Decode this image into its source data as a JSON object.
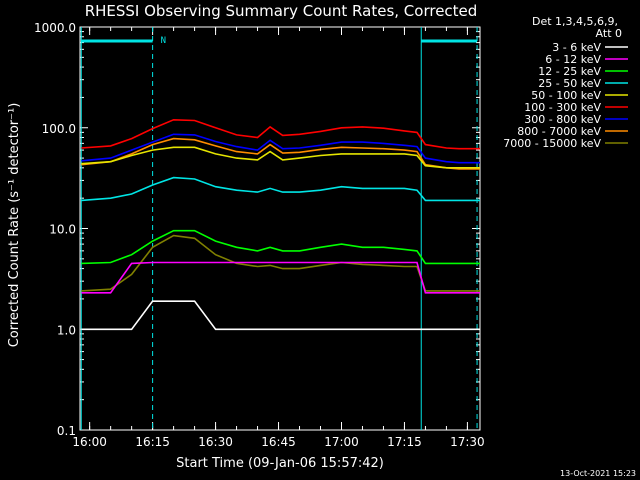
{
  "chart_data": {
    "type": "line",
    "title": "RHESSI Observing Summary Count Rates, Corrected",
    "ylabel": "Corrected Count Rate (s⁻¹ detector⁻¹)",
    "xlabel": "Start Time (09-Jan-06 15:57:42)",
    "yscale": "log",
    "ylim": [
      0.1,
      1000
    ],
    "xlim": [
      -2.3,
      93
    ],
    "yticks": [
      "1000.0",
      "100.0",
      "10.0",
      "1.0",
      "0.1"
    ],
    "xticks": [
      "16:00",
      "16:15",
      "16:30",
      "16:45",
      "17:00",
      "17:15",
      "17:30"
    ],
    "legend_header": [
      "Det 1,3,4,5,6,9,",
      "Att 0"
    ],
    "legend_position": "right",
    "footer": "13-Oct-2021 15:23",
    "flag_label": "N",
    "flag_color": "#00e5e5",
    "x": [
      -2,
      5,
      10,
      15,
      20,
      25,
      30,
      35,
      40,
      43,
      46,
      50,
      55,
      60,
      65,
      70,
      75,
      78,
      80,
      85,
      88,
      93
    ],
    "series": [
      {
        "name": "3 - 6 keV",
        "color": "#ffffff",
        "values": [
          1,
          1,
          1,
          1.9,
          1.9,
          1.9,
          1,
          1,
          1,
          1,
          1,
          1,
          1,
          1,
          1,
          1,
          1,
          1,
          1,
          1,
          1,
          1
        ]
      },
      {
        "name": "6 - 12 keV",
        "color": "#ff00ff",
        "values": [
          2.3,
          2.3,
          4.5,
          4.6,
          4.6,
          4.6,
          4.6,
          4.6,
          4.6,
          4.6,
          4.6,
          4.6,
          4.6,
          4.6,
          4.6,
          4.6,
          4.6,
          4.6,
          2.3,
          2.3,
          2.3,
          2.3
        ]
      },
      {
        "name": "12 - 25 keV",
        "color": "#00ff00",
        "values": [
          4.5,
          4.6,
          5.5,
          7.5,
          9.5,
          9.5,
          7.5,
          6.5,
          6.0,
          6.5,
          6.0,
          6.0,
          6.5,
          7.0,
          6.5,
          6.5,
          6.2,
          6.0,
          4.5,
          4.5,
          4.5,
          4.5
        ]
      },
      {
        "name": "25 - 50 keV",
        "color": "#00e5e5",
        "values": [
          19,
          20,
          22,
          27,
          32,
          31,
          26,
          24,
          23,
          25,
          23,
          23,
          24,
          26,
          25,
          25,
          25,
          24,
          19,
          19,
          19,
          19
        ]
      },
      {
        "name": "50 - 100 keV",
        "color": "#e5e500",
        "values": [
          44,
          46,
          53,
          60,
          64,
          64,
          55,
          50,
          48,
          58,
          48,
          50,
          53,
          55,
          55,
          55,
          55,
          53,
          42,
          40,
          40,
          40
        ]
      },
      {
        "name": "100 - 300 keV",
        "color": "#ff0000",
        "values": [
          63,
          66,
          78,
          98,
          120,
          118,
          100,
          85,
          80,
          102,
          84,
          86,
          92,
          100,
          102,
          99,
          93,
          90,
          68,
          63,
          62,
          62
        ]
      },
      {
        "name": "300 - 800 keV",
        "color": "#0000ff",
        "values": [
          47,
          50,
          60,
          72,
          86,
          85,
          73,
          65,
          60,
          75,
          62,
          63,
          67,
          72,
          72,
          70,
          67,
          65,
          50,
          46,
          45,
          45
        ]
      },
      {
        "name": "800 - 7000 keV",
        "color": "#ff8c00",
        "values": [
          43,
          46,
          55,
          68,
          78,
          76,
          66,
          58,
          55,
          68,
          56,
          57,
          61,
          64,
          63,
          62,
          60,
          58,
          43,
          40,
          39,
          39
        ]
      },
      {
        "name": "7000 - 15000 keV",
        "color": "#808000",
        "values": [
          2.4,
          2.5,
          3.5,
          6.5,
          8.5,
          8.0,
          5.5,
          4.5,
          4.2,
          4.3,
          4.0,
          4.0,
          4.3,
          4.6,
          4.4,
          4.3,
          4.2,
          4.2,
          2.4,
          2.4,
          2.4,
          2.4
        ]
      }
    ]
  }
}
